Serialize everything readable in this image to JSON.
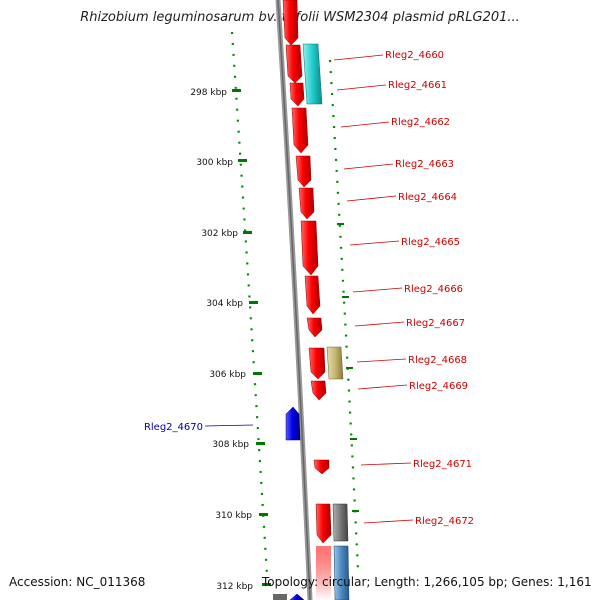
{
  "title": "Rhizobium leguminosarum bv. trifolii WSM2304 plasmid pRLG201...",
  "accession": "Accession: NC_011368",
  "summary": "Topology: circular; Length: 1,266,105 bp; Genes: 1,161",
  "colors": {
    "forward_gene": "#ff0000",
    "reverse_gene": "#0000ee",
    "label_forward": "#cc0000",
    "label_reverse": "#0000aa",
    "backbone": "#888888",
    "tick": "#007700",
    "cyan_feature": "#22cccc",
    "khaki_feature": "#c8b870",
    "grey_feature": "#777777",
    "steelblue_feature": "#4a88c0"
  },
  "ticks": [
    "298 kbp",
    "300 kbp",
    "302 kbp",
    "304 kbp",
    "306 kbp",
    "308 kbp",
    "310 kbp",
    "312 kbp"
  ],
  "gene_labels": [
    {
      "text": "Rleg2_4660",
      "strand": "forward"
    },
    {
      "text": "Rleg2_4661",
      "strand": "forward"
    },
    {
      "text": "Rleg2_4662",
      "strand": "forward"
    },
    {
      "text": "Rleg2_4663",
      "strand": "forward"
    },
    {
      "text": "Rleg2_4664",
      "strand": "forward"
    },
    {
      "text": "Rleg2_4665",
      "strand": "forward"
    },
    {
      "text": "Rleg2_4666",
      "strand": "forward"
    },
    {
      "text": "Rleg2_4667",
      "strand": "forward"
    },
    {
      "text": "Rleg2_4668",
      "strand": "forward"
    },
    {
      "text": "Rleg2_4669",
      "strand": "forward"
    },
    {
      "text": "Rleg2_4670",
      "strand": "reverse"
    },
    {
      "text": "Rleg2_4671",
      "strand": "forward"
    },
    {
      "text": "Rleg2_4672",
      "strand": "forward"
    }
  ]
}
